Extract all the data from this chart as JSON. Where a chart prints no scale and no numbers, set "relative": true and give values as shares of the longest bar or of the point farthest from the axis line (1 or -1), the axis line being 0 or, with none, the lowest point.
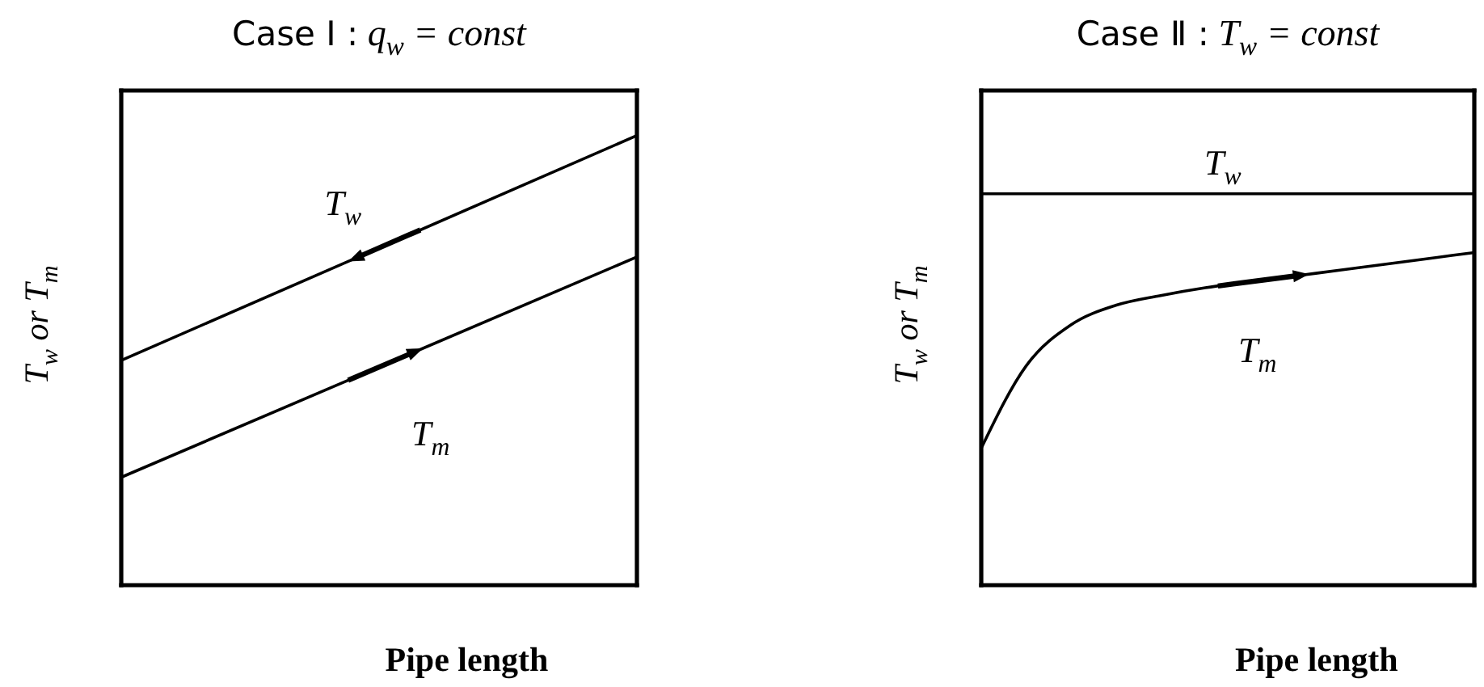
{
  "chart_data": [
    {
      "type": "line",
      "title": "Case Ⅰ : q$_{w}$ = const",
      "xlabel": "Pipe length",
      "ylabel": "T$_{w}$ or T$_{m}$",
      "relative": true,
      "line_style": "solid",
      "categories": [
        null,
        null
      ],
      "series": [
        {
          "name": "T$_{w}$",
          "color": "#000000",
          "values": [
            0.5,
            1
          ]
        },
        {
          "name": "T$_{m}$",
          "color": "#000000",
          "values": [
            0.24,
            0.73
          ]
        }
      ]
    },
    {
      "type": "line",
      "title": "Case Ⅱ : T$_{w}$ = const",
      "xlabel": "Pipe length",
      "ylabel": "T$_{w}$ or T$_{m}$",
      "relative": true,
      "line_style": "solid",
      "categories": [
        null,
        null,
        null,
        null,
        null,
        null,
        null,
        null,
        null,
        null,
        null,
        null
      ],
      "series": [
        {
          "name": "T$_{w}$",
          "color": "#000000",
          "values": [
            1,
            1,
            1,
            1,
            1,
            1,
            1,
            1,
            1,
            1,
            1,
            1
          ]
        },
        {
          "name": "T$_{m}$",
          "color": "#000000",
          "values": [
            0.35,
            0.56,
            0.665,
            0.715,
            0.74,
            0.76,
            0.775,
            0.79,
            0.805,
            0.82,
            0.835,
            0.85
          ]
        }
      ]
    }
  ]
}
